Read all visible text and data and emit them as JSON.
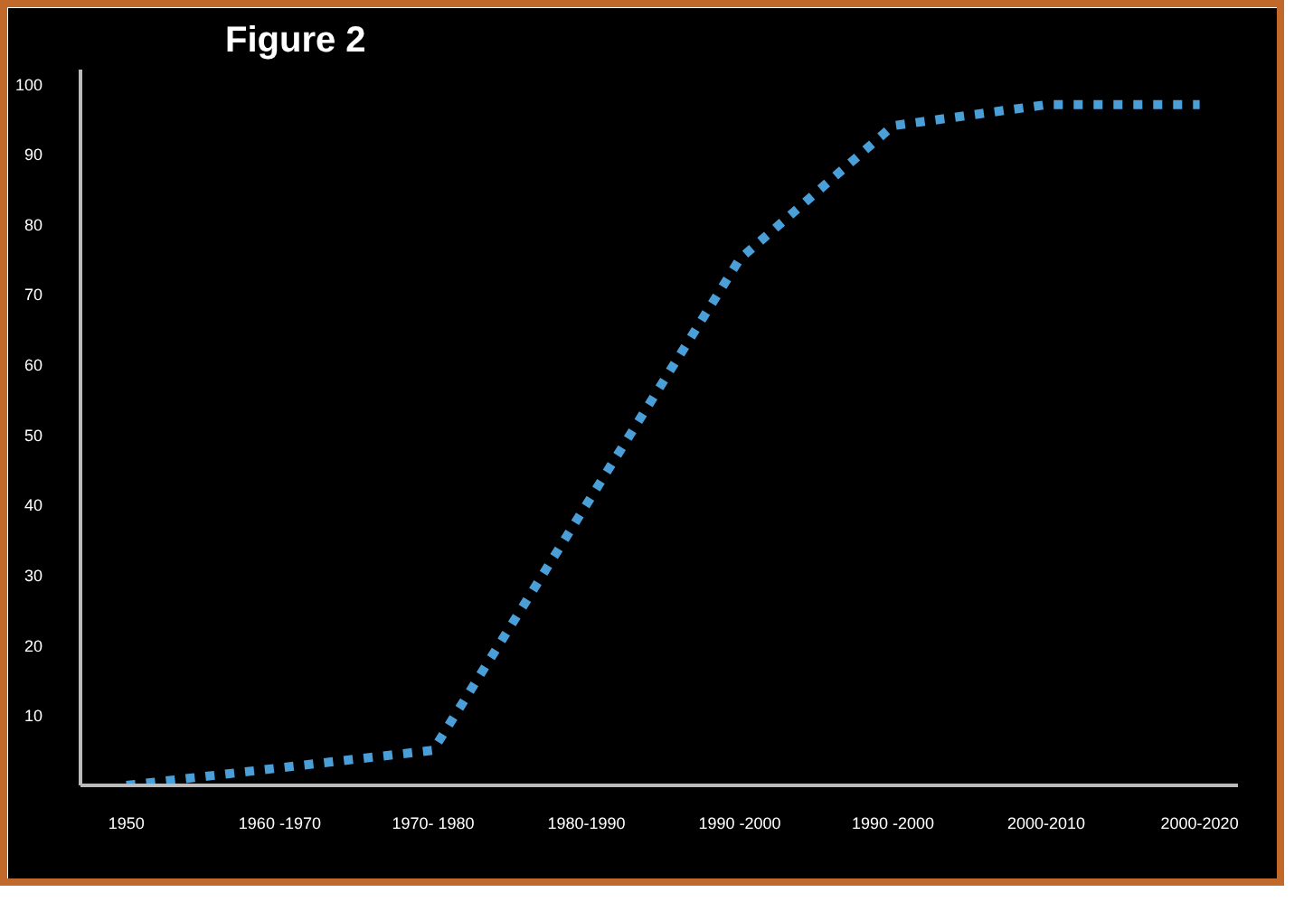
{
  "chart_data": {
    "type": "line",
    "title": "Figure 2",
    "categories": [
      "1950",
      "1960 -1970",
      "1970- 1980",
      "1980-1990",
      "1990 -2000",
      "1990 -2000",
      "2000-2010",
      "2000-2020"
    ],
    "series": [
      {
        "color": "#4a9fd8",
        "values": [
          0,
          2.5,
          5,
          40,
          75,
          94,
          97,
          97
        ]
      }
    ],
    "ylim": [
      0,
      102
    ],
    "yticks": [
      10,
      20,
      30,
      40,
      50,
      60,
      70,
      80,
      90,
      100
    ],
    "grid": false,
    "marker": "none",
    "line_style": "dotted"
  }
}
